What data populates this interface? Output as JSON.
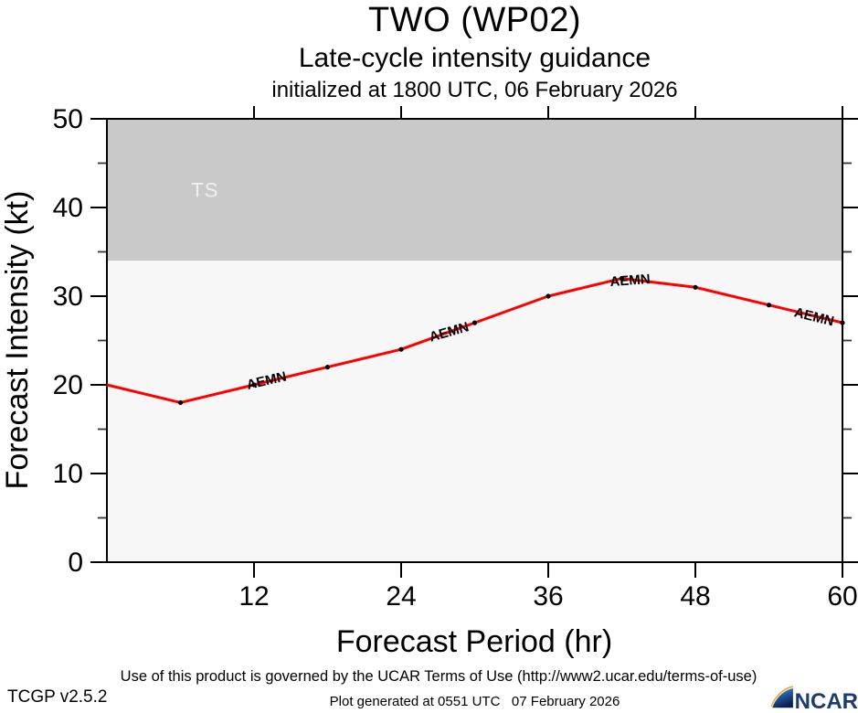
{
  "header": {
    "title": "TWO (WP02)",
    "subtitle": "Late-cycle intensity guidance",
    "init": "initialized at 1800 UTC, 06 February 2026"
  },
  "footer": {
    "terms": "Use of this product is governed by the UCAR Terms of Use (http://www2.ucar.edu/terms-of-use)",
    "generated": "Plot generated at 0551 UTC   07 February 2026",
    "version": "TCGP v2.5.2",
    "logo_text": "NCAR"
  },
  "colors": {
    "line": "#ff0000",
    "marker": "#000000",
    "band": "#c9c9c9",
    "plot_bg": "#f7f7f7",
    "band_label": "#f0f0f0",
    "axis": "#000000",
    "minor_tick": "#333333",
    "ncar_navy": "#1d3c6e",
    "ncar_light_blue": "#8ab4dd",
    "ncar_dark_blue": "#0b1f4e",
    "ncar_orange": "#e8a33d"
  },
  "chart_data": {
    "type": "line",
    "title": "TWO (WP02)",
    "subtitle": "Late-cycle intensity guidance",
    "initialized": "initialized at 1800 UTC, 06 February 2026",
    "xlabel": "Forecast Period (hr)",
    "ylabel": "Forecast Intensity (kt)",
    "xlim": [
      0,
      60
    ],
    "ylim": [
      0,
      50
    ],
    "x_major_ticks": [
      12,
      24,
      36,
      48,
      60
    ],
    "y_major_ticks": [
      0,
      10,
      20,
      30,
      40,
      50
    ],
    "y_minor_ticks": [
      5,
      15,
      25,
      35,
      45
    ],
    "grid": false,
    "series": [
      {
        "name": "AEMN",
        "x": [
          0,
          6,
          12,
          18,
          24,
          30,
          36,
          42,
          48,
          54,
          60
        ],
        "values": [
          20,
          18,
          20,
          22,
          24,
          27,
          30,
          32,
          31,
          29,
          27
        ]
      }
    ],
    "bands": [
      {
        "label": "TS",
        "from": 34,
        "to": 50,
        "label_hr": 8,
        "label_kt": 42
      }
    ],
    "series_labels": [
      {
        "text": "AEMN",
        "hr": 13.1,
        "kt": 20.5,
        "rot": -13
      },
      {
        "text": "AEMN",
        "hr": 28.0,
        "kt": 26.0,
        "rot": -16
      },
      {
        "text": "AEMN",
        "hr": 42.7,
        "kt": 31.8,
        "rot": -4
      },
      {
        "text": "AEMN",
        "hr": 57.6,
        "kt": 27.7,
        "rot": 14
      }
    ]
  }
}
